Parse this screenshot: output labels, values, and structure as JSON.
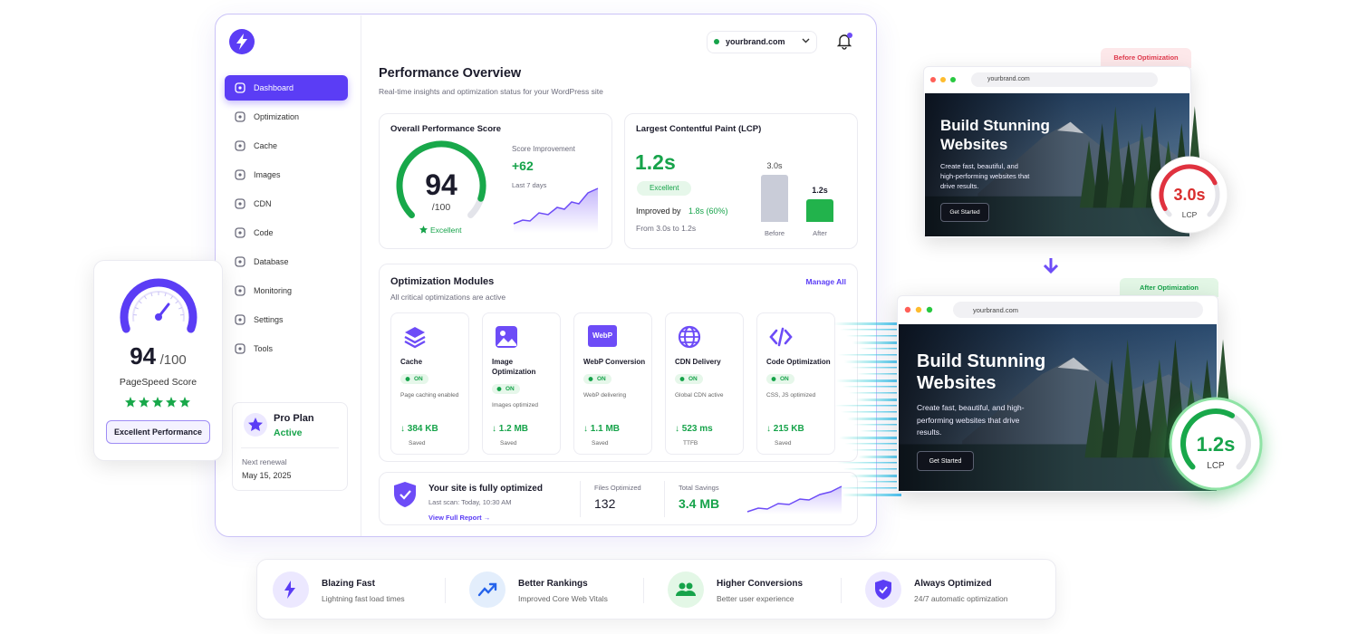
{
  "sidebar": {
    "nav": [
      "Dashboard",
      "Optimization",
      "Cache",
      "Images",
      "CDN",
      "Code",
      "Database",
      "Monitoring",
      "Settings",
      "Tools"
    ],
    "plan": {
      "title": "Pro Plan",
      "status": "Active",
      "renewal_label": "Next renewal",
      "renewal_date": "May 15, 2025"
    }
  },
  "header": {
    "domain": "yourbrand.com"
  },
  "overview": {
    "title": "Performance Overview",
    "subtitle": "Real-time insights and optimization status for your WordPress site"
  },
  "score_card": {
    "title": "Overall Performance Score",
    "score": "94",
    "max": "/100",
    "rating": "Excellent",
    "improvement_label": "Score Improvement",
    "improvement": "+62",
    "period": "Last 7 days"
  },
  "lcp_card": {
    "title": "Largest Contentful Paint (LCP)",
    "value": "1.2s",
    "rating": "Excellent",
    "improved_prefix": "Improved by",
    "improved_value": "1.8s (60%)",
    "from_to": "From 3.0s to 1.2s",
    "before_value": "3.0s",
    "after_value": "1.2s",
    "before_label": "Before",
    "after_label": "After"
  },
  "modules": {
    "title": "Optimization Modules",
    "subtitle": "All critical optimizations are active",
    "action": "Manage All",
    "webp_icon": "WebP",
    "items": [
      {
        "name": "Cache",
        "status": "ON",
        "desc": "Page caching enabled",
        "value": "↓ 384 KB",
        "value_label": "Saved"
      },
      {
        "name": "Image Optimization",
        "status": "ON",
        "desc": "Images optimized",
        "value": "↓ 1.2 MB",
        "value_label": "Saved"
      },
      {
        "name": "WebP Conversion",
        "status": "ON",
        "desc": "WebP delivering",
        "value": "↓ 1.1 MB",
        "value_label": "Saved"
      },
      {
        "name": "CDN Delivery",
        "status": "ON",
        "desc": "Global CDN active",
        "value": "↓ 523 ms",
        "value_label": "TTFB"
      },
      {
        "name": "Code Optimization",
        "status": "ON",
        "desc": "CSS, JS optimized",
        "value": "↓ 215 KB",
        "value_label": "Saved"
      }
    ]
  },
  "summary": {
    "title": "Your site is fully optimized",
    "last_scan": "Last scan: Today, 10:30 AM",
    "link": "View Full Report →",
    "files_label": "Files Optimized",
    "files": "132",
    "savings_label": "Total Savings",
    "savings": "3.4 MB"
  },
  "pagespeed": {
    "score": "94",
    "max": "/100",
    "label": "PageSpeed Score",
    "badge": "Excellent Performance"
  },
  "before": {
    "tag": "Before Optimization",
    "url": "yourbrand.com",
    "headline": "Build Stunning Websites",
    "text": "Create fast, beautiful, and high-performing websites that drive results.",
    "button": "Get Started",
    "lcp_value": "3.0s",
    "lcp_label": "LCP"
  },
  "after": {
    "tag": "After Optimization",
    "url": "yourbrand.com",
    "headline": "Build Stunning Websites",
    "text": "Create fast, beautiful, and high-performing websites that drive results.",
    "button": "Get Started",
    "lcp_value": "1.2s",
    "lcp_label": "LCP"
  },
  "features": [
    {
      "title": "Blazing Fast",
      "desc": "Lightning fast load times"
    },
    {
      "title": "Better Rankings",
      "desc": "Improved Core Web Vitals"
    },
    {
      "title": "Higher Conversions",
      "desc": "Better user experience"
    },
    {
      "title": "Always Optimized",
      "desc": "24/7 automatic optimization"
    }
  ]
}
